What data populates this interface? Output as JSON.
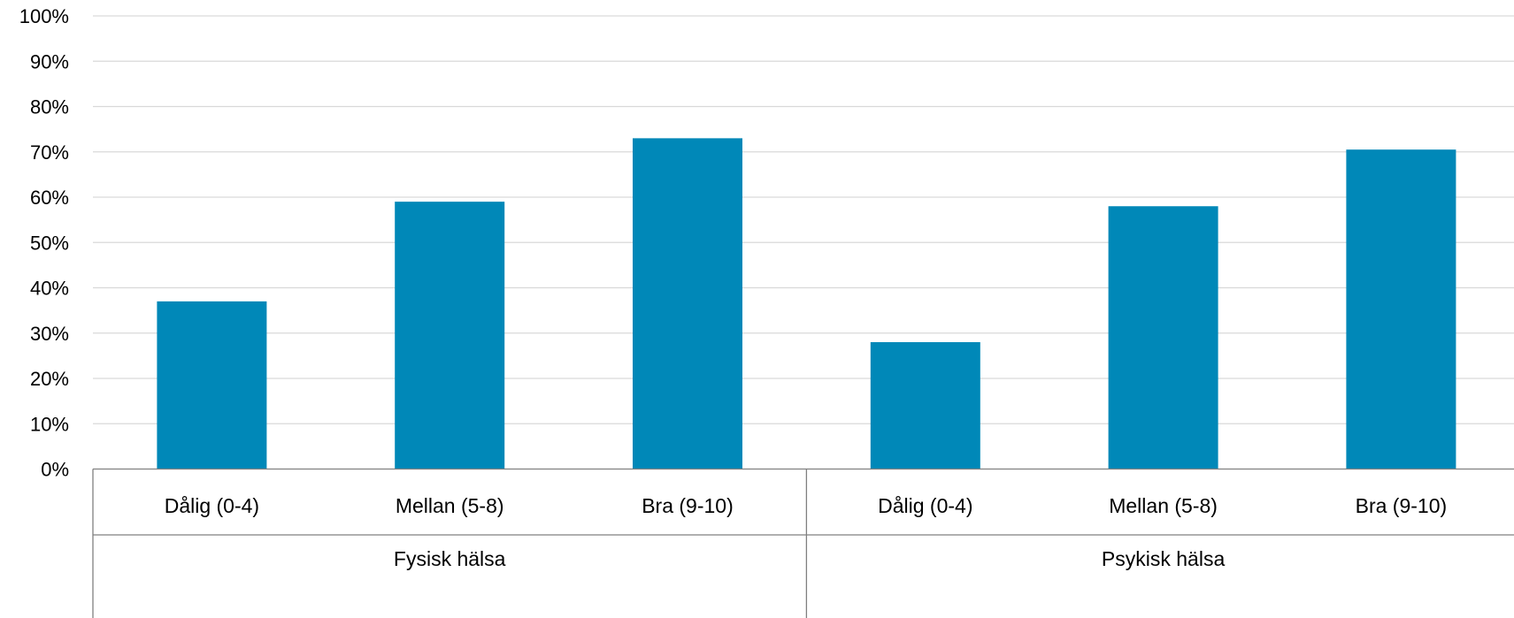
{
  "chart_data": {
    "type": "bar",
    "ylim": [
      0,
      100
    ],
    "y_ticks": [
      "0%",
      "10%",
      "20%",
      "30%",
      "40%",
      "50%",
      "60%",
      "70%",
      "80%",
      "90%",
      "100%"
    ],
    "y_unit": "%",
    "grid": true,
    "bar_color": "#0088b8",
    "groups": [
      {
        "label": "Fysisk hälsa",
        "categories": [
          "Dålig (0-4)",
          "Mellan (5-8)",
          "Bra (9-10)"
        ],
        "values": [
          37,
          59,
          73
        ]
      },
      {
        "label": "Psykisk hälsa",
        "categories": [
          "Dålig (0-4)",
          "Mellan (5-8)",
          "Bra (9-10)"
        ],
        "values": [
          28,
          58,
          70.5
        ]
      }
    ]
  }
}
